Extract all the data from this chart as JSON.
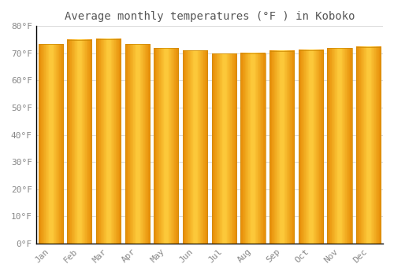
{
  "title": "Average monthly temperatures (°F ) in Koboko",
  "months": [
    "Jan",
    "Feb",
    "Mar",
    "Apr",
    "May",
    "Jun",
    "Jul",
    "Aug",
    "Sep",
    "Oct",
    "Nov",
    "Dec"
  ],
  "values": [
    73.4,
    75.0,
    75.2,
    73.4,
    72.0,
    71.1,
    69.8,
    70.0,
    70.9,
    71.2,
    72.0,
    72.3
  ],
  "bar_color_edge": "#E8900A",
  "bar_color_center": "#FFD040",
  "background_color": "#FFFFFF",
  "grid_color": "#DDDDDD",
  "ylim": [
    0,
    80
  ],
  "yticks": [
    0,
    10,
    20,
    30,
    40,
    50,
    60,
    70,
    80
  ],
  "ytick_labels": [
    "0°F",
    "10°F",
    "20°F",
    "30°F",
    "40°F",
    "50°F",
    "60°F",
    "70°F",
    "80°F"
  ],
  "title_fontsize": 10,
  "tick_fontsize": 8,
  "font_color": "#888888",
  "title_color": "#555555",
  "bar_width": 0.85
}
